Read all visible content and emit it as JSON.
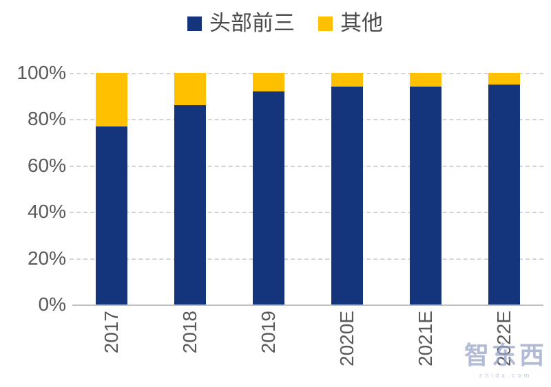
{
  "chart_data": {
    "type": "bar",
    "stacked": true,
    "title": "",
    "categories": [
      "2017",
      "2018",
      "2019",
      "2020E",
      "2021E",
      "2022E"
    ],
    "series": [
      {
        "name": "头部前三",
        "color": "#14357C",
        "values": [
          77,
          86,
          92,
          94,
          94,
          95
        ]
      },
      {
        "name": "其他",
        "color": "#FFC000",
        "values": [
          23,
          14,
          8,
          6,
          6,
          5
        ]
      }
    ],
    "unit": "%",
    "xlabel": "",
    "ylabel": "",
    "ylim": [
      0,
      100
    ],
    "ytick_values": [
      0,
      20,
      40,
      60,
      80,
      100
    ],
    "ytick_labels": [
      "0%",
      "20%",
      "40%",
      "60%",
      "80%",
      "100%"
    ],
    "grid": "horizontal-dashed",
    "legend_position": "top-center"
  },
  "watermark": {
    "text": "智东西",
    "subtext": "zhidx.com"
  }
}
